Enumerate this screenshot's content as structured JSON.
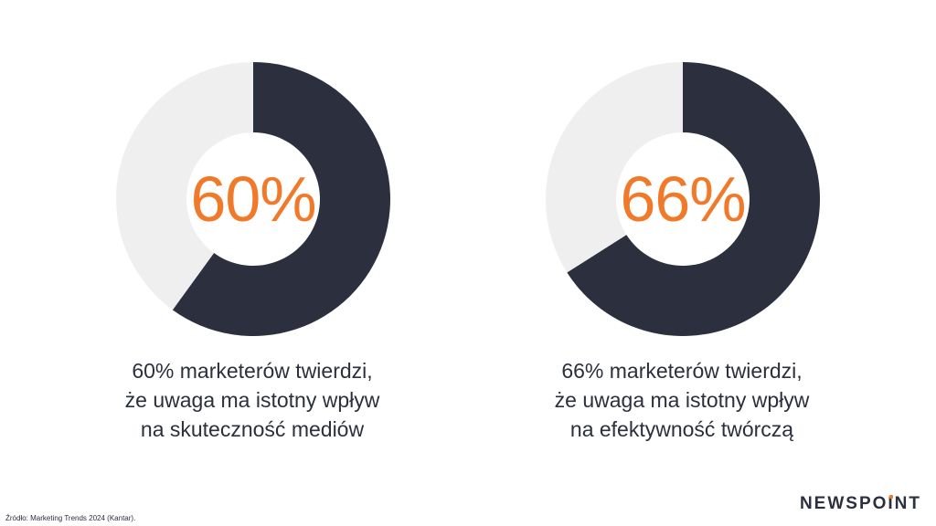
{
  "colors": {
    "filled": "#2b2f3e",
    "remaining": "#efefef",
    "accent": "#f07a2a"
  },
  "chart_data": [
    {
      "type": "pie",
      "values": [
        60,
        40
      ],
      "center_label": "60%",
      "caption": [
        "60% marketerów twierdzi,",
        "że uwaga ma istotny wpływ",
        "na skuteczność mediów"
      ]
    },
    {
      "type": "pie",
      "values": [
        66,
        34
      ],
      "center_label": "66%",
      "caption": [
        "66% marketerów twierdzi,",
        "że uwaga ma istotny wpływ",
        "na efektywność twórczą"
      ]
    }
  ],
  "footer": {
    "source": "Źródło: Marketing Trends 2024 (Kantar).",
    "logo_before": "NEWSPO",
    "logo_dot": "I",
    "logo_after": "NT"
  }
}
